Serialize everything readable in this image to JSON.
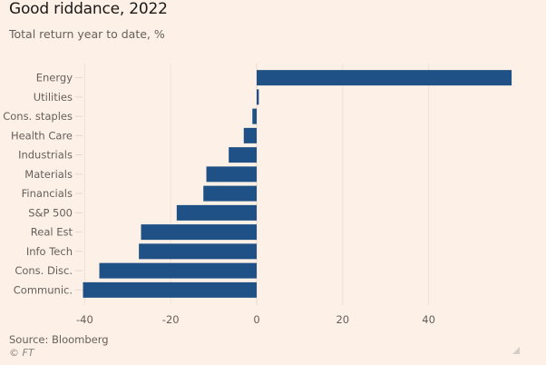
{
  "header": {
    "title": "Good riddance, 2022",
    "subtitle": "Total return year to date, %"
  },
  "footer": {
    "source": "Source: Bloomberg",
    "copyright": "© FT"
  },
  "colors": {
    "background": "#fdf0e6",
    "bar": "#1f5187",
    "grid": "#efe3d9",
    "tick_text": "#66605c"
  },
  "chart_data": {
    "type": "bar",
    "orientation": "horizontal",
    "title": "Good riddance, 2022",
    "subtitle": "Total return year to date, %",
    "xlabel": "",
    "ylabel": "",
    "categories": [
      "Energy",
      "Utilities",
      "Cons. staples",
      "Health Care",
      "Industrials",
      "Materials",
      "Financials",
      "S&P 500",
      "Real Est",
      "Info Tech",
      "Cons. Disc.",
      "Communic."
    ],
    "values": [
      59.3,
      0.5,
      -1.0,
      -3.0,
      -6.5,
      -11.7,
      -12.4,
      -18.6,
      -26.9,
      -27.4,
      -36.6,
      -40.4
    ],
    "xlim": [
      -40,
      60
    ],
    "xticks": [
      -40,
      -20,
      0,
      20,
      40
    ],
    "xtick_labels": [
      "-40",
      "-20",
      "0",
      "20",
      "40"
    ],
    "grid": true,
    "legend": "none",
    "source": "Source: Bloomberg"
  }
}
